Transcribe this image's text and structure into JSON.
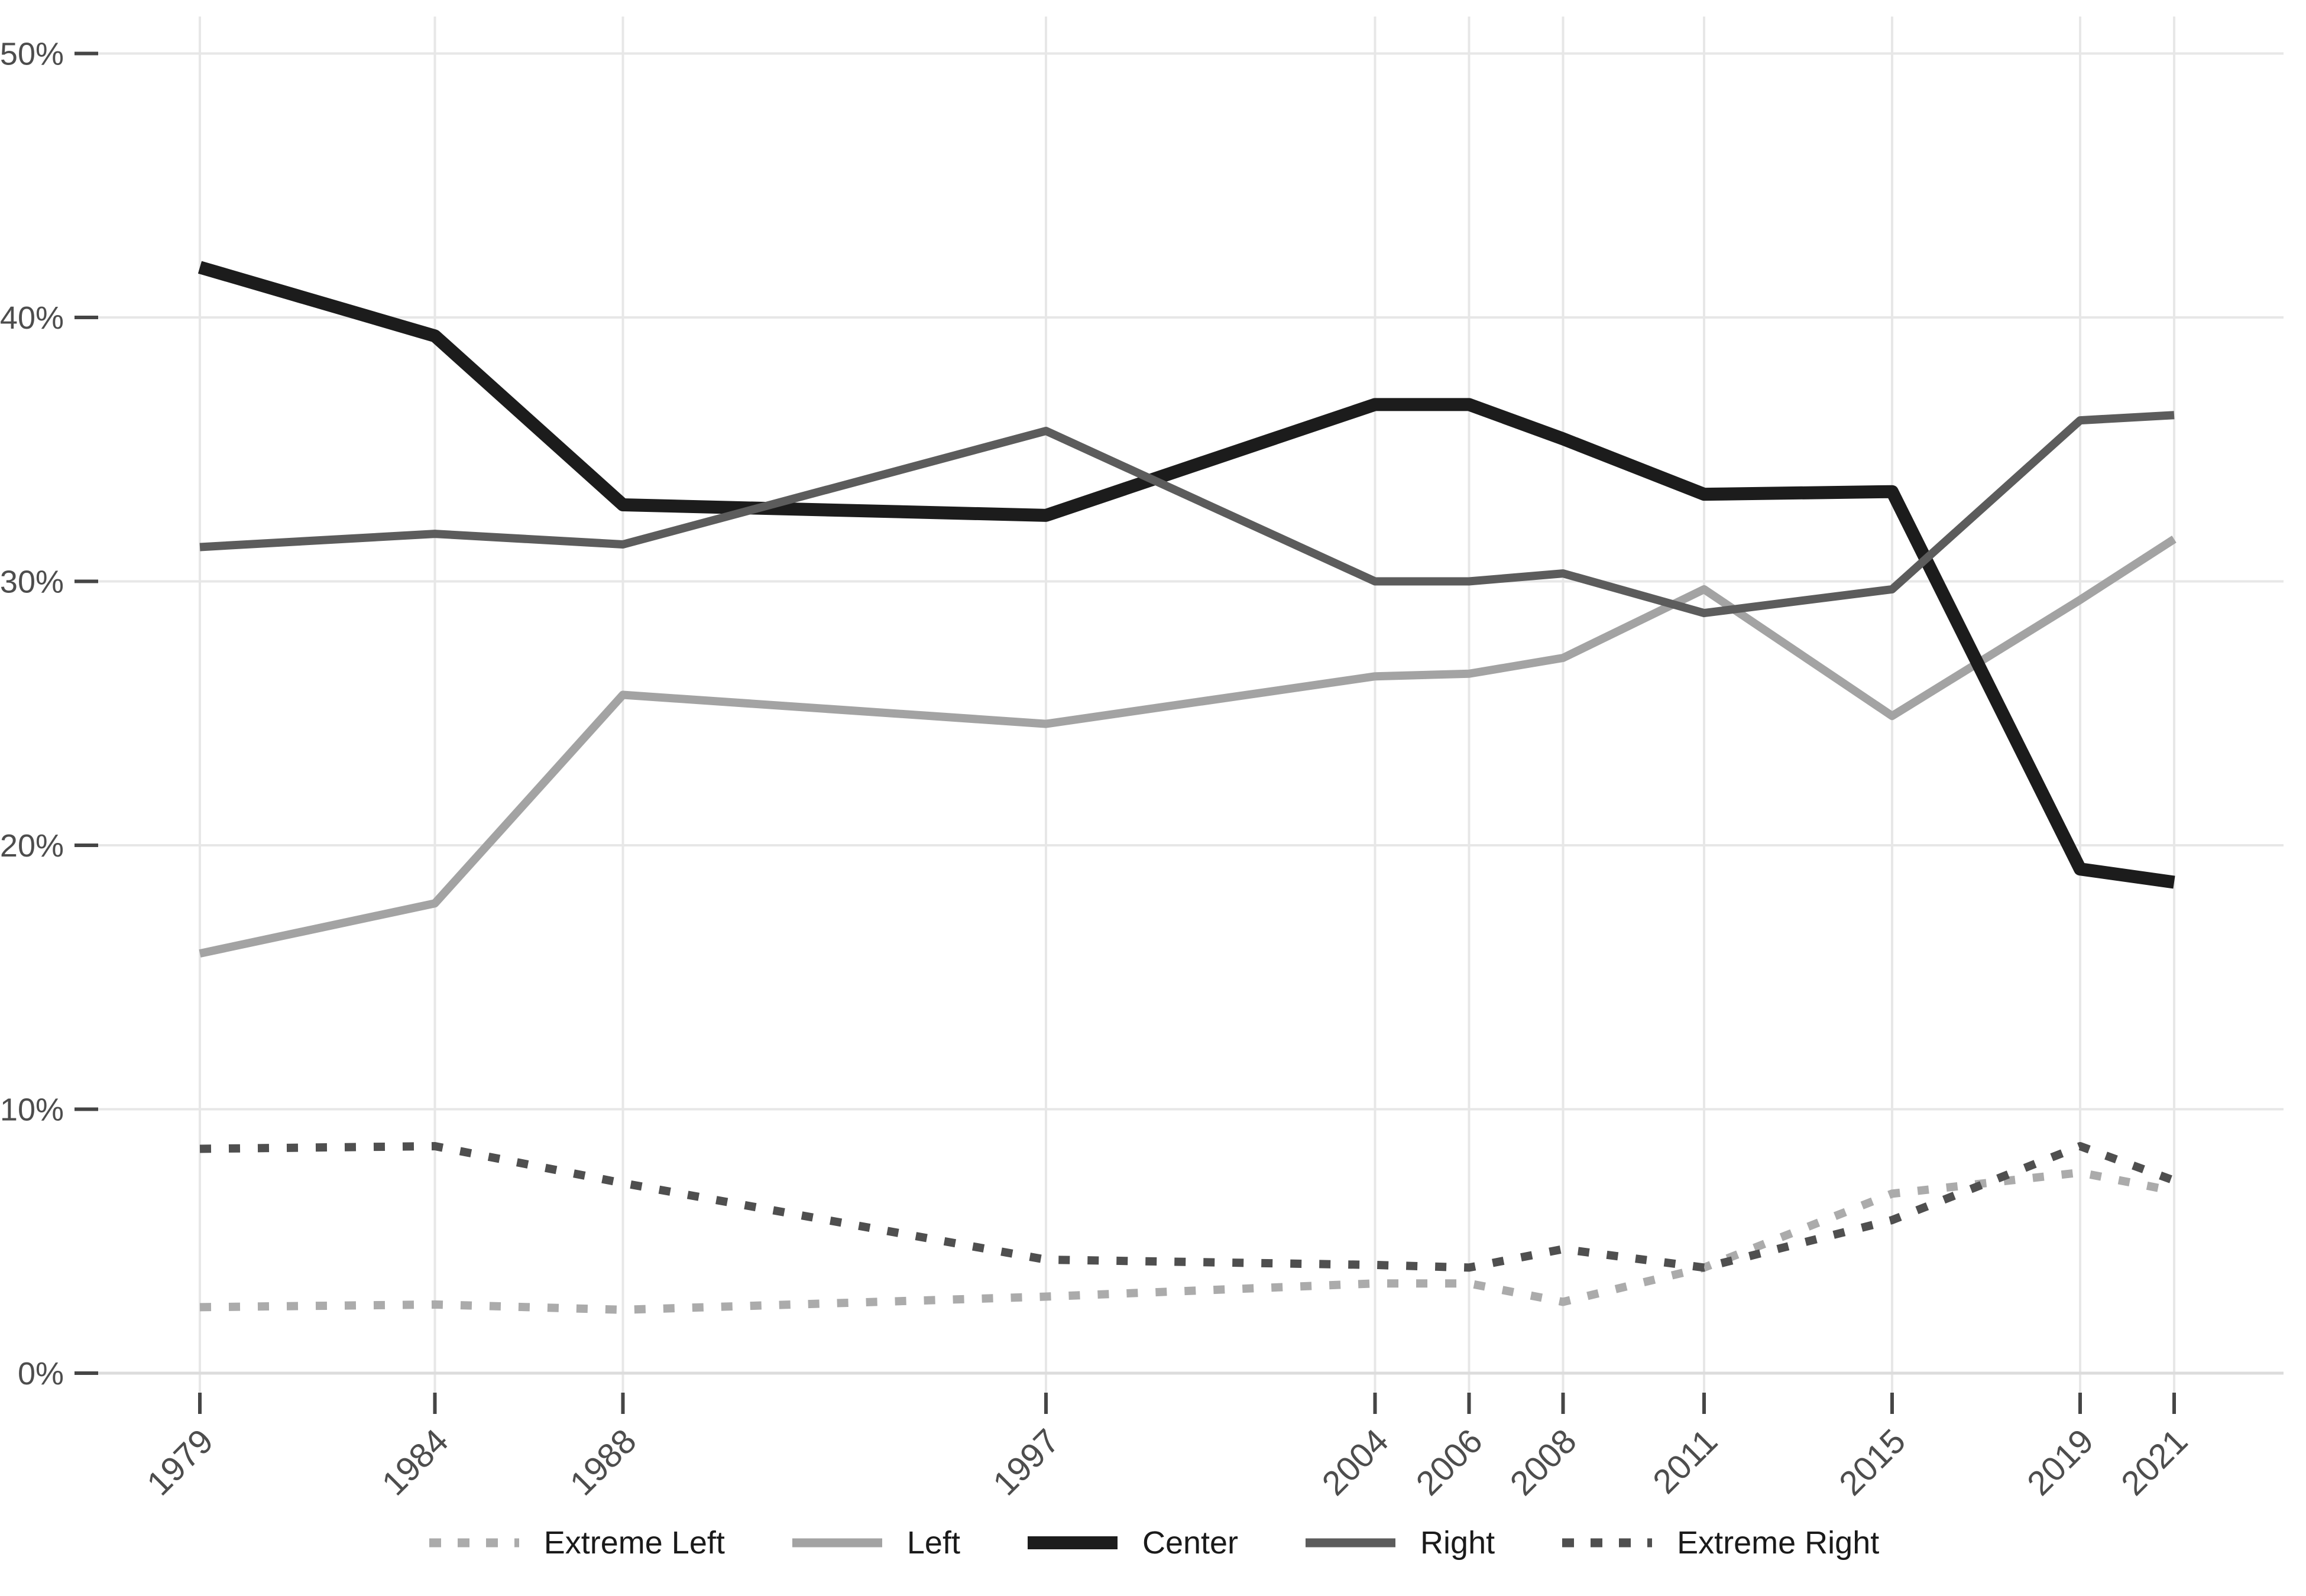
{
  "chart_data": {
    "type": "line",
    "title": "",
    "xlabel": "",
    "ylabel": "",
    "x": [
      1979,
      1984,
      1988,
      1997,
      2004,
      2006,
      2008,
      2011,
      2015,
      2019,
      2021
    ],
    "x_tick_labels": [
      "1979",
      "1984",
      "1988",
      "1997",
      "2004",
      "2006",
      "2008",
      "2011",
      "2015",
      "2019",
      "2021"
    ],
    "yticks": [
      0,
      10,
      20,
      30,
      40,
      50
    ],
    "y_tick_labels": [
      "0%",
      "10%",
      "20%",
      "30%",
      "40%",
      "50%"
    ],
    "ylim": [
      0,
      50
    ],
    "grid": true,
    "legend_position": "bottom",
    "series": [
      {
        "name": "Extreme Left",
        "style": "dotted",
        "color": "#ababab",
        "width": 14,
        "values": [
          2.5,
          2.6,
          2.4,
          2.9,
          3.4,
          3.4,
          2.7,
          4.0,
          6.8,
          7.6,
          6.9
        ]
      },
      {
        "name": "Left",
        "style": "solid",
        "color": "#a3a3a3",
        "width": 14,
        "values": [
          15.9,
          17.8,
          25.7,
          24.6,
          26.4,
          26.5,
          27.1,
          29.7,
          24.9,
          29.3,
          31.6
        ]
      },
      {
        "name": "Center",
        "style": "solid",
        "color": "#1c1c1c",
        "width": 22,
        "values": [
          41.9,
          39.3,
          32.9,
          32.5,
          36.7,
          36.7,
          35.4,
          33.3,
          33.4,
          19.1,
          18.6
        ]
      },
      {
        "name": "Right",
        "style": "solid",
        "color": "#5c5c5c",
        "width": 14,
        "values": [
          31.3,
          31.8,
          31.4,
          35.7,
          30.0,
          30.0,
          30.3,
          28.8,
          29.7,
          36.1,
          36.3
        ]
      },
      {
        "name": "Extreme Right",
        "style": "dotted",
        "color": "#4f4f4f",
        "width": 14,
        "values": [
          8.5,
          8.6,
          7.2,
          4.3,
          4.1,
          4.0,
          4.7,
          4.0,
          5.8,
          8.6,
          7.3
        ]
      }
    ],
    "colors": {
      "background": "#ffffff",
      "grid": "#e7e7e7",
      "axis_line": "#dcdcdc",
      "tick_mark": "#454545",
      "axis_text": "#4d4d4d",
      "legend_text": "#1a1a1a"
    }
  }
}
